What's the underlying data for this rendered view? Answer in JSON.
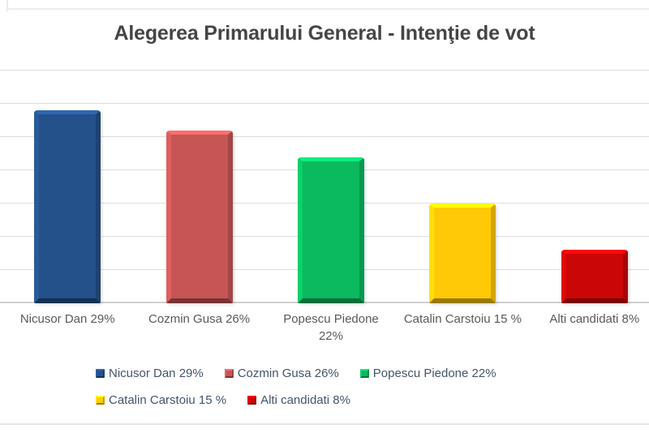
{
  "page": {
    "background": "#ffffff"
  },
  "chart_data": {
    "type": "bar",
    "title": "Alegerea Primarului General - Intenţie de vot",
    "categories": [
      "Nicusor Dan 29%",
      "Cozmin Gusa 26%",
      "Popescu Piedone 22%",
      "Catalin Carstoiu 15 %",
      "Alti candidati 8%"
    ],
    "values": [
      29,
      26,
      22,
      15,
      8
    ],
    "bar_colors": [
      "#24518A",
      "#C75556",
      "#0BB95F",
      "#FFC907",
      "#CB0606"
    ],
    "xlabel": "",
    "ylabel": "",
    "ylim": [
      0,
      35
    ],
    "gridline_step": 5,
    "grid": true,
    "gridline_color": "#dedede",
    "axis_label_color": "#595959",
    "title_color": "#454545",
    "legend_position": "bottom",
    "legend": [
      {
        "label": "Nicusor Dan 29%",
        "color": "#24518A"
      },
      {
        "label": "Cozmin Gusa 26%",
        "color": "#C75556"
      },
      {
        "label": "Popescu Piedone 22%",
        "color": "#0BB95F"
      },
      {
        "label": "Catalin Carstoiu 15 %",
        "color": "#FFC907"
      },
      {
        "label": "Alti candidati 8%",
        "color": "#CB0606"
      }
    ]
  }
}
